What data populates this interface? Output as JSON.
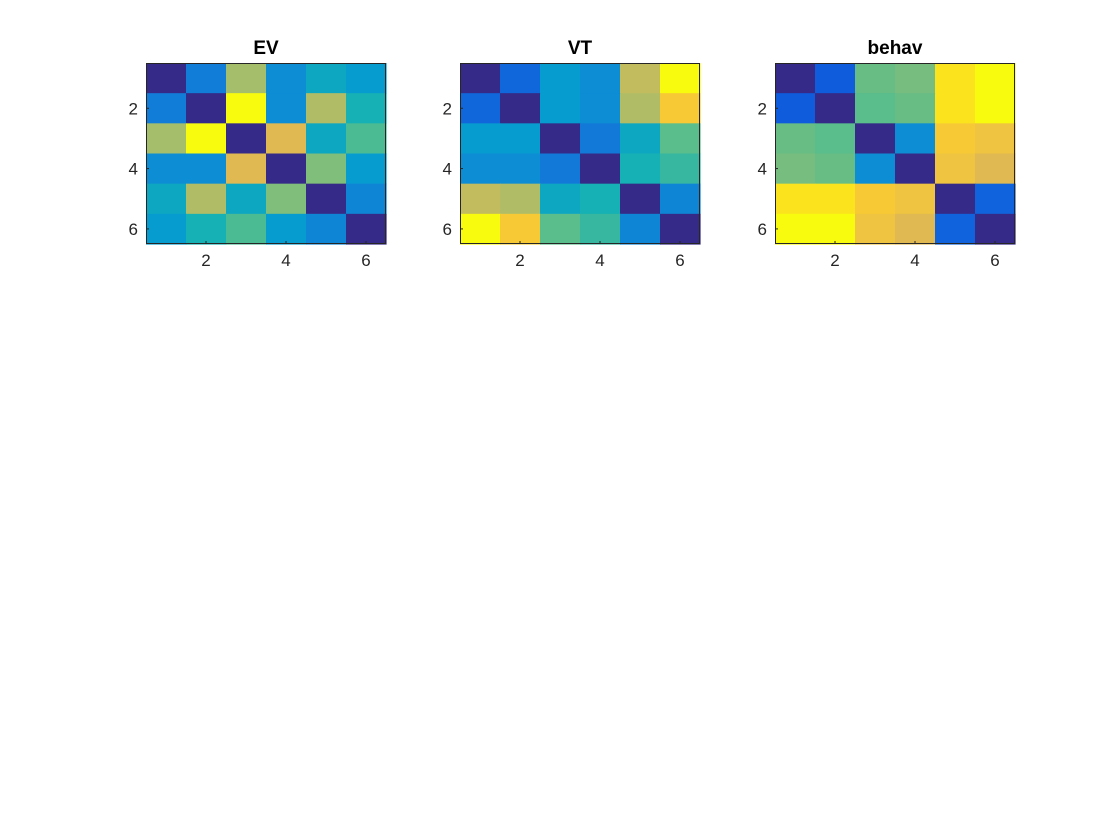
{
  "chart_data": [
    {
      "type": "heatmap",
      "title": "EV",
      "xlim": [
        0.5,
        6.5
      ],
      "ylim": [
        0.5,
        6.5
      ],
      "y_direction": "reverse",
      "xticks": [
        2,
        4,
        6
      ],
      "yticks": [
        2,
        4,
        6
      ],
      "colormap": "parula",
      "grid": false,
      "matrix": [
        [
          0.0,
          0.3,
          0.7,
          0.35,
          0.45,
          0.4
        ],
        [
          0.3,
          0.0,
          1.0,
          0.35,
          0.72,
          0.5
        ],
        [
          0.7,
          1.0,
          0.0,
          0.8,
          0.45,
          0.58
        ],
        [
          0.35,
          0.35,
          0.8,
          0.0,
          0.65,
          0.4
        ],
        [
          0.45,
          0.72,
          0.45,
          0.65,
          0.0,
          0.33
        ],
        [
          0.4,
          0.5,
          0.58,
          0.4,
          0.33,
          0.0
        ]
      ]
    },
    {
      "type": "heatmap",
      "title": "VT",
      "xlim": [
        0.5,
        6.5
      ],
      "ylim": [
        0.5,
        6.5
      ],
      "y_direction": "reverse",
      "xticks": [
        2,
        4,
        6
      ],
      "yticks": [
        2,
        4,
        6
      ],
      "colormap": "parula",
      "grid": false,
      "matrix": [
        [
          0.0,
          0.2,
          0.4,
          0.35,
          0.75,
          1.0
        ],
        [
          0.2,
          0.0,
          0.4,
          0.35,
          0.72,
          0.88
        ],
        [
          0.4,
          0.4,
          0.0,
          0.28,
          0.45,
          0.6
        ],
        [
          0.35,
          0.35,
          0.28,
          0.0,
          0.5,
          0.55
        ],
        [
          0.75,
          0.72,
          0.45,
          0.5,
          0.0,
          0.33
        ],
        [
          1.0,
          0.88,
          0.6,
          0.55,
          0.33,
          0.0
        ]
      ]
    },
    {
      "type": "heatmap",
      "title": "behav",
      "xlim": [
        0.5,
        6.5
      ],
      "ylim": [
        0.5,
        6.5
      ],
      "y_direction": "reverse",
      "xticks": [
        2,
        4,
        6
      ],
      "yticks": [
        2,
        4,
        6
      ],
      "colormap": "parula",
      "grid": false,
      "matrix": [
        [
          0.0,
          0.15,
          0.62,
          0.64,
          0.95,
          1.0
        ],
        [
          0.15,
          0.0,
          0.6,
          0.62,
          0.95,
          1.0
        ],
        [
          0.62,
          0.6,
          0.0,
          0.35,
          0.88,
          0.85
        ],
        [
          0.64,
          0.62,
          0.35,
          0.0,
          0.85,
          0.8
        ],
        [
          0.95,
          0.95,
          0.88,
          0.85,
          0.0,
          0.18
        ],
        [
          1.0,
          1.0,
          0.85,
          0.8,
          0.18,
          0.0
        ]
      ]
    }
  ]
}
